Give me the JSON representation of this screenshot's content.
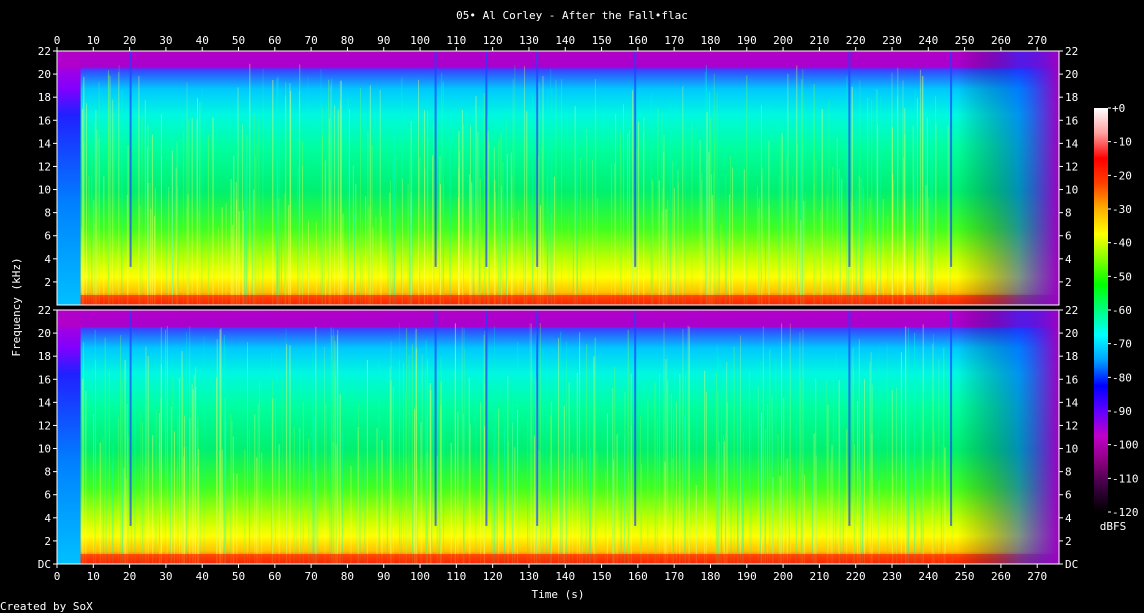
{
  "chart_data": {
    "type": "heatmap",
    "title": "05• Al Corley - After the Fall•flac",
    "xlabel": "Time (s)",
    "ylabel": "Frequency (kHz)",
    "footer": "Created by SoX",
    "x_ticks": [
      "0",
      "10",
      "20",
      "30",
      "40",
      "50",
      "60",
      "70",
      "80",
      "90",
      "100",
      "110",
      "120",
      "130",
      "140",
      "150",
      "160",
      "170",
      "180",
      "190",
      "200",
      "210",
      "220",
      "230",
      "240",
      "250",
      "260",
      "270"
    ],
    "xlim": [
      0,
      276
    ],
    "channels": [
      {
        "y_ticks": [
          "2",
          "4",
          "6",
          "8",
          "10",
          "12",
          "14",
          "16",
          "18",
          "20",
          "22"
        ],
        "ylim": [
          0,
          22
        ]
      },
      {
        "y_ticks": [
          "DC",
          "2",
          "4",
          "6",
          "8",
          "10",
          "12",
          "14",
          "16",
          "18",
          "20",
          "22"
        ],
        "ylim": [
          0,
          22
        ]
      }
    ],
    "colorbar": {
      "label": "dBFS",
      "ticks": [
        "+0",
        "-10",
        "-20",
        "-30",
        "-40",
        "-50",
        "-60",
        "-70",
        "-80",
        "-90",
        "-100",
        "-110",
        "-120"
      ],
      "range": [
        -120,
        0
      ],
      "colors": [
        "#000000",
        "#3a0040",
        "#8a0080",
        "#c000c8",
        "#6000ff",
        "#0000ff",
        "#00a0ff",
        "#00ffff",
        "#00ff80",
        "#00ff00",
        "#80ff00",
        "#ffff00",
        "#ffb000",
        "#ff4000",
        "#ff0000",
        "#ffa0a0",
        "#ffffff"
      ]
    },
    "background_color": "#000000"
  }
}
